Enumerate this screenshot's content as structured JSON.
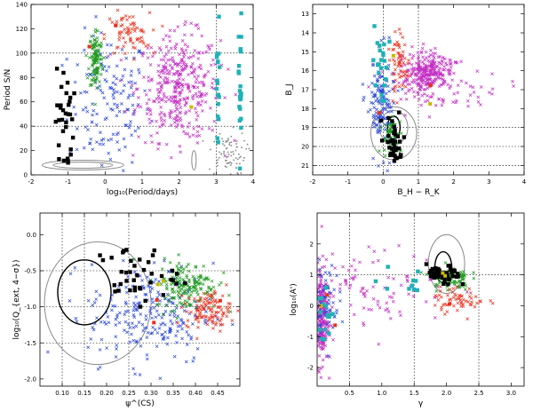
{
  "colors": {
    "black": "#000000",
    "green": "#1f9a1f",
    "red": "#e8321e",
    "blue": "#2c49d6",
    "magenta": "#c330c3",
    "cyan": "#1fb2b6",
    "gray": "#8a8a8a",
    "yellow": "#c9b800",
    "grid": "#000000"
  },
  "chart_data": [
    {
      "id": "a",
      "type": "scatter",
      "title": "",
      "xlabel": "log₁₀(Period/days)",
      "ylabel": "Period S/N",
      "xlim": [
        -2,
        4
      ],
      "ylim": [
        0,
        140
      ],
      "xticks": [
        -2,
        -1,
        0,
        1,
        2,
        3,
        4
      ],
      "yticks": [
        0,
        20,
        40,
        60,
        80,
        100,
        120,
        140
      ],
      "xtick_labels": [
        "-2",
        "-1",
        "0",
        "1",
        "2",
        "3",
        "4"
      ],
      "ytick_labels": [
        "0",
        "20",
        "40",
        "60",
        "80",
        "100",
        "120",
        "140"
      ],
      "vlines": [
        3
      ],
      "hlines": [
        40,
        100
      ],
      "clusters": [
        {
          "name": "blue",
          "marker": "x",
          "n": 150,
          "cx": 0.1,
          "cy": 60,
          "sx": 0.55,
          "sy": 28
        },
        {
          "name": "magenta",
          "marker": "x",
          "n": 380,
          "cx": 2.0,
          "cy": 72,
          "sx": 0.55,
          "sy": 22
        },
        {
          "name": "red",
          "marker": "x",
          "n": 70,
          "cx": 0.6,
          "cy": 115,
          "sx": 0.3,
          "sy": 9
        },
        {
          "name": "green",
          "marker": "x",
          "n": 110,
          "cx": -0.25,
          "cy": 95,
          "sx": 0.09,
          "sy": 13
        },
        {
          "name": "gray",
          "marker": "dot",
          "n": 80,
          "cx": 3.3,
          "cy": 18,
          "sx": 0.25,
          "sy": 9
        },
        {
          "name": "black",
          "marker": "s",
          "n": 32,
          "cx": -1.1,
          "cy": 45,
          "sx": 0.12,
          "sy": 22
        },
        {
          "name": "cyan",
          "marker": "s",
          "n": 26,
          "cx": 3.65,
          "cy": 72,
          "sx": 0.02,
          "sy": 30
        },
        {
          "name": "cyan",
          "marker": "s",
          "n": 18,
          "cx": 3.05,
          "cy": 70,
          "sx": 0.03,
          "sy": 28
        }
      ],
      "contours": [
        {
          "color": "gray",
          "cx": -0.6,
          "cy": 8,
          "rx": 1.1,
          "ry": 4
        },
        {
          "color": "gray",
          "cx": -0.6,
          "cy": 8,
          "rx": 0.8,
          "ry": 2.5
        },
        {
          "color": "gray",
          "cx": 2.4,
          "cy": 12,
          "rx": 0.06,
          "ry": 8
        }
      ]
    },
    {
      "id": "b",
      "type": "scatter",
      "title": "",
      "xlabel": "B_H − R_K",
      "ylabel": "B_J",
      "xlim": [
        -2,
        4
      ],
      "ylim": [
        21.5,
        12.5
      ],
      "xticks": [
        -2,
        -1,
        0,
        1,
        2,
        3,
        4
      ],
      "yticks": [
        13,
        14,
        15,
        16,
        17,
        18,
        19,
        20,
        21
      ],
      "xtick_labels": [
        "-2",
        "-1",
        "0",
        "1",
        "2",
        "3",
        "4"
      ],
      "ytick_labels": [
        "13",
        "14",
        "15",
        "16",
        "17",
        "18",
        "19",
        "20",
        "21"
      ],
      "vlines": [
        0,
        1
      ],
      "hlines": [
        19,
        20,
        21
      ],
      "clusters": [
        {
          "name": "magenta",
          "marker": "x",
          "n": 260,
          "cx": 1.3,
          "cy": 16.0,
          "sx": 0.35,
          "sy": 0.45
        },
        {
          "name": "magenta",
          "marker": "x",
          "n": 80,
          "cx": 1.5,
          "cy": 17.0,
          "sx": 0.8,
          "sy": 0.6
        },
        {
          "name": "blue",
          "marker": "x",
          "n": 140,
          "cx": -0.05,
          "cy": 17.5,
          "sx": 0.2,
          "sy": 1.3
        },
        {
          "name": "red",
          "marker": "x",
          "n": 60,
          "cx": 0.45,
          "cy": 15.6,
          "sx": 0.12,
          "sy": 0.8
        },
        {
          "name": "green",
          "marker": "x",
          "n": 70,
          "cx": 0.25,
          "cy": 19.6,
          "sx": 0.12,
          "sy": 0.5
        },
        {
          "name": "black",
          "marker": "s",
          "n": 35,
          "cx": 0.25,
          "cy": 19.7,
          "sx": 0.12,
          "sy": 0.7
        },
        {
          "name": "cyan",
          "marker": "s",
          "n": 22,
          "cx": -0.1,
          "cy": 15.5,
          "sx": 0.1,
          "sy": 1.0
        }
      ],
      "contours": [
        {
          "color": "gray",
          "cx": 0.3,
          "cy": 19.3,
          "rx": 0.65,
          "ry": 1.4
        },
        {
          "color": "gray",
          "cx": 0.3,
          "cy": 19.0,
          "rx": 0.4,
          "ry": 0.9
        },
        {
          "color": "black",
          "cx": 0.3,
          "cy": 19.0,
          "rx": 0.18,
          "ry": 0.6
        }
      ]
    },
    {
      "id": "c",
      "type": "scatter",
      "title": "",
      "xlabel": "ψ^(CS)",
      "ylabel": "log₁₀(Q_{ext, 4−σ})",
      "xlim": [
        0.05,
        0.5
      ],
      "ylim": [
        -2.1,
        0.3
      ],
      "xticks": [
        0.1,
        0.15,
        0.2,
        0.25,
        0.3,
        0.35,
        0.4,
        0.45
      ],
      "yticks": [
        -2.0,
        -1.5,
        -1.0,
        -0.5,
        0.0
      ],
      "xtick_labels": [
        "0.10",
        "0.15",
        "0.20",
        "0.25",
        "0.30",
        "0.35",
        "0.40",
        "0.45"
      ],
      "ytick_labels": [
        "-2.0",
        "-1.5",
        "-1.0",
        "-0.5",
        "0.0"
      ],
      "vlines": [
        0.1,
        0.15,
        0.25
      ],
      "hlines": [
        -0.5,
        -1.0,
        -1.5
      ],
      "clusters": [
        {
          "name": "blue",
          "marker": "x",
          "n": 240,
          "cx": 0.3,
          "cy": -1.1,
          "sx": 0.07,
          "sy": 0.35
        },
        {
          "name": "green",
          "marker": "x",
          "n": 170,
          "cx": 0.38,
          "cy": -0.7,
          "sx": 0.035,
          "sy": 0.17
        },
        {
          "name": "red",
          "marker": "x",
          "n": 110,
          "cx": 0.43,
          "cy": -1.05,
          "sx": 0.025,
          "sy": 0.13
        },
        {
          "name": "black",
          "marker": "s",
          "n": 40,
          "cx": 0.265,
          "cy": -0.55,
          "sx": 0.045,
          "sy": 0.2
        }
      ],
      "contours": [
        {
          "color": "gray",
          "cx": 0.18,
          "cy": -0.95,
          "rx": 0.12,
          "ry": 0.85
        },
        {
          "color": "black",
          "cx": 0.15,
          "cy": -0.8,
          "rx": 0.06,
          "ry": 0.45
        }
      ]
    },
    {
      "id": "d",
      "type": "scatter",
      "title": "",
      "xlabel": "γ",
      "ylabel": "log₁₀(A')",
      "xlim": [
        0,
        3.2
      ],
      "ylim": [
        -2.6,
        3.0
      ],
      "xticks": [
        0.5,
        1.0,
        1.5,
        2.0,
        2.5,
        3.0
      ],
      "yticks": [
        -2,
        -1,
        0,
        1,
        2
      ],
      "xtick_labels": [
        "0.5",
        "1.0",
        "1.5",
        "2.0",
        "2.5",
        "3.0"
      ],
      "ytick_labels": [
        "-2",
        "-1",
        "0",
        "1",
        "2"
      ],
      "vlines": [
        0.5,
        1.5,
        2.5
      ],
      "hlines": [
        1.0
      ],
      "clusters": [
        {
          "name": "magenta",
          "marker": "x",
          "n": 280,
          "cx": 0.05,
          "cy": -0.3,
          "sx": 0.06,
          "sy": 0.8
        },
        {
          "name": "magenta",
          "marker": "x",
          "n": 90,
          "cx": 0.9,
          "cy": 0.6,
          "sx": 0.55,
          "sy": 0.6
        },
        {
          "name": "blue",
          "marker": "x",
          "n": 80,
          "cx": 0.1,
          "cy": 0.2,
          "sx": 0.12,
          "sy": 0.6
        },
        {
          "name": "green",
          "marker": "x",
          "n": 80,
          "cx": 2.05,
          "cy": 0.9,
          "sx": 0.15,
          "sy": 0.2
        },
        {
          "name": "red",
          "marker": "x",
          "n": 60,
          "cx": 2.2,
          "cy": 0.2,
          "sx": 0.2,
          "sy": 0.2
        },
        {
          "name": "black",
          "marker": "s",
          "n": 40,
          "cx": 1.95,
          "cy": 0.95,
          "sx": 0.13,
          "sy": 0.18
        },
        {
          "name": "cyan",
          "marker": "s",
          "n": 18,
          "cx": 0.1,
          "cy": -0.4,
          "sx": 0.06,
          "sy": 0.6
        },
        {
          "name": "cyan",
          "marker": "s",
          "n": 10,
          "cx": 1.4,
          "cy": 0.7,
          "sx": 0.3,
          "sy": 0.3
        }
      ],
      "contours": [
        {
          "color": "gray",
          "cx": 2.0,
          "cy": 1.35,
          "rx": 0.28,
          "ry": 0.95
        },
        {
          "color": "black",
          "cx": 1.95,
          "cy": 1.25,
          "rx": 0.13,
          "ry": 0.5
        }
      ]
    }
  ]
}
